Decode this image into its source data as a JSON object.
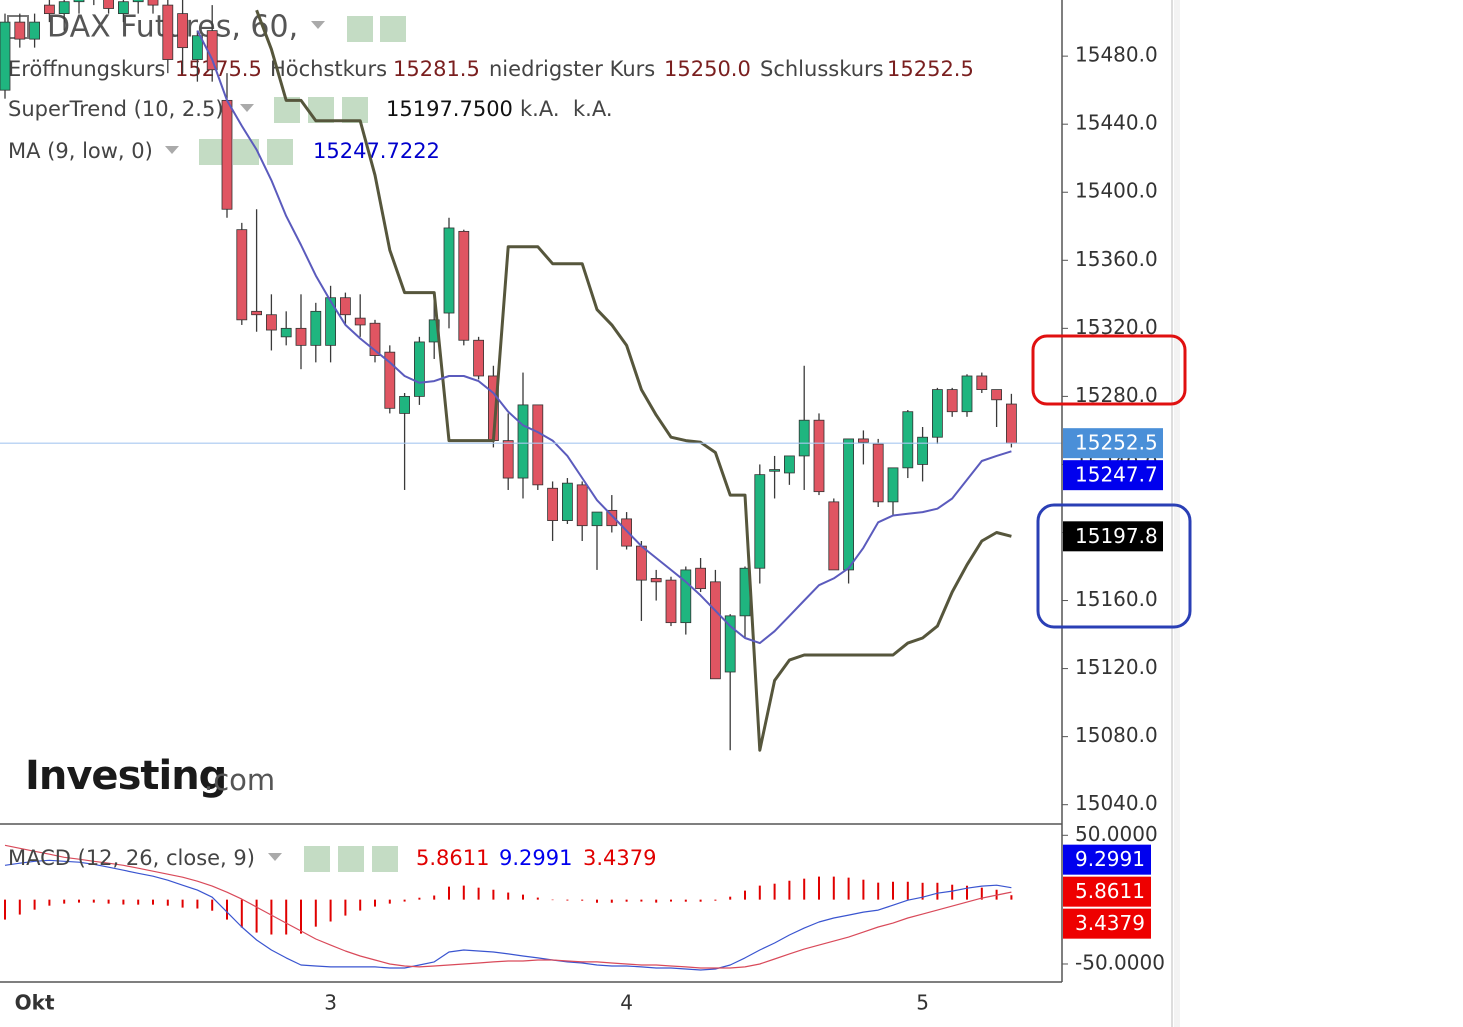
{
  "chart_data": [
    {
      "type": "candlestick",
      "title": "DAX Futures, 60,",
      "categories": [
        null,
        null,
        "Okt",
        null,
        null,
        null,
        null,
        null,
        null,
        null,
        null,
        null,
        null,
        null,
        null,
        null,
        null,
        null,
        null,
        null,
        null,
        null,
        "3",
        null,
        null,
        null,
        null,
        null,
        null,
        null,
        null,
        null,
        null,
        null,
        null,
        null,
        null,
        null,
        null,
        null,
        null,
        null,
        "4",
        null,
        null,
        null,
        null,
        null,
        null,
        null,
        null,
        null,
        null,
        null,
        null,
        null,
        null,
        null,
        null,
        null,
        null,
        null,
        "5",
        null,
        null,
        null,
        null,
        null,
        null
      ],
      "open": [
        15460,
        15500,
        15490,
        15510,
        15505,
        15512,
        15520,
        15515,
        15505,
        15512,
        15515,
        15510,
        15505,
        15478,
        15495,
        15454,
        15378,
        15330,
        15328,
        15315,
        15320,
        15310,
        15310,
        15338,
        15326,
        15323,
        15306,
        15270,
        15280,
        15312,
        15329,
        15377,
        15313,
        15292,
        15254,
        15232,
        15275,
        15226,
        15207,
        15228,
        15204,
        15213,
        15208,
        15192,
        15173,
        15172,
        15147,
        15179,
        15171,
        15118,
        15151,
        15179,
        15236,
        15235,
        15245,
        15266,
        15218,
        15178,
        15255,
        15252,
        15218,
        15238,
        15240,
        15256,
        15284,
        15271,
        15292,
        15284,
        15275.5
      ],
      "high": [
        15505,
        15505,
        15505,
        15520,
        15515,
        15525,
        15525,
        15520,
        15515,
        15520,
        15525,
        15515,
        15515,
        15495,
        15510,
        15470,
        15382,
        15390,
        15340,
        15330,
        15340,
        15335,
        15345,
        15341,
        15340,
        15325,
        15310,
        15282,
        15315,
        15340,
        15385,
        15378,
        15315,
        15298,
        15270,
        15294,
        15275,
        15230,
        15232,
        15230,
        15212,
        15222,
        15212,
        15195,
        15178,
        15174,
        15180,
        15185,
        15178,
        15152,
        15180,
        15240,
        15245,
        15245,
        15298,
        15270,
        15220,
        15255,
        15260,
        15255,
        15238,
        15272,
        15262,
        15285,
        15285,
        15293,
        15294,
        15284,
        15281.5
      ],
      "low": [
        15455,
        15485,
        15485,
        15500,
        15495,
        15505,
        15510,
        15505,
        15500,
        15505,
        15505,
        15470,
        15470,
        15465,
        15465,
        15385,
        15322,
        15318,
        15307,
        15310,
        15296,
        15300,
        15300,
        15322,
        15315,
        15300,
        15270,
        15225,
        15275,
        15302,
        15320,
        15310,
        15290,
        15250,
        15225,
        15220,
        15225,
        15195,
        15205,
        15195,
        15178,
        15200,
        15190,
        15148,
        15160,
        15145,
        15140,
        15165,
        15114,
        15072,
        15138,
        15170,
        15220,
        15228,
        15225,
        15222,
        15178,
        15170,
        15240,
        15215,
        15210,
        15232,
        15230,
        15252,
        15268,
        15268,
        15282,
        15262,
        15250
      ],
      "close": [
        15500,
        15490,
        15500,
        15505,
        15512,
        15520,
        15515,
        15508,
        15512,
        15515,
        15510,
        15478,
        15485,
        15492,
        15472,
        15390,
        15325,
        15328,
        15319,
        15320,
        15310,
        15330,
        15338,
        15328,
        15322,
        15304,
        15273,
        15280,
        15312,
        15325,
        15379,
        15313,
        15292,
        15254,
        15232,
        15275,
        15228,
        15207,
        15229,
        15204,
        15212,
        15204,
        15192,
        15172,
        15171,
        15147,
        15178,
        15167,
        15114,
        15151,
        15179,
        15234,
        15237,
        15245,
        15266,
        15224,
        15178,
        15255,
        15253,
        15218,
        15238,
        15271,
        15256,
        15284,
        15271,
        15292,
        15284,
        15278,
        15252.5
      ],
      "up_color": "#1fb57f",
      "down_color": "#e05562",
      "last_tag_color": "#4a8fd8",
      "ohlc_legend": [
        {
          "name": "Eröffnungskurs",
          "value": "15275.5"
        },
        {
          "name": "Höchstkurs",
          "value": "15281.5"
        },
        {
          "name": "niedrigster Kurs",
          "value": "15250.0"
        },
        {
          "name": "Schlusskurs",
          "value": "15252.5"
        }
      ],
      "series": [
        {
          "name": "SuperTrend (10, 2.5)",
          "color": "#56563c",
          "legend_values": [
            "15197.7500",
            "k.A.",
            "k.A."
          ],
          "tag_label": "15197.8",
          "tag_color": "#000000",
          "values": [
            null,
            null,
            null,
            null,
            null,
            null,
            null,
            null,
            null,
            null,
            null,
            null,
            null,
            null,
            null,
            null,
            null,
            15507,
            15484,
            15454,
            15454,
            15442,
            15442,
            15442,
            15442,
            15410,
            15366,
            15341,
            15341,
            15341,
            15254,
            15254,
            15254,
            15254,
            15368,
            15368,
            15368,
            15358,
            15358,
            15358,
            15331,
            15322,
            15310,
            15284,
            15269,
            15256,
            15254,
            15253,
            15247,
            15222,
            15222,
            15072,
            15113,
            15125,
            15128,
            15128,
            15128,
            15128,
            15128,
            15128,
            15128,
            15135,
            15138,
            15145,
            15165,
            15181,
            15195,
            15200,
            15197.75
          ]
        },
        {
          "name": "MA (9, low, 0)",
          "color": "#5b5bbd",
          "tag_label": "15247.7",
          "tag_color": "#0000ee",
          "values": [
            null,
            null,
            null,
            null,
            null,
            null,
            null,
            null,
            null,
            null,
            null,
            null,
            null,
            15495,
            15478,
            15454,
            15439,
            15425,
            15407,
            15386,
            15369,
            15351,
            15336,
            15322,
            15314,
            15307,
            15300,
            15292,
            15288,
            15289,
            15292,
            15292,
            15289,
            15282,
            15271,
            15263,
            15259,
            15254,
            15245,
            15232,
            15219,
            15210,
            15201,
            15192,
            15185,
            15178,
            15171,
            15163,
            15154,
            15145,
            15138,
            15135,
            15142,
            15151,
            15160,
            15169,
            15173,
            15179,
            15191,
            15206,
            15210,
            15211,
            15212,
            15214,
            15220,
            15231,
            15242,
            15245,
            15247.7222
          ]
        }
      ],
      "ylim": [
        15031,
        15513
      ],
      "yticks": [
        {
          "value": 15040,
          "label": "15040.0"
        },
        {
          "value": 15080,
          "label": "15080.0"
        },
        {
          "value": 15120,
          "label": "15120.0"
        },
        {
          "value": 15160,
          "label": "15160.0"
        },
        {
          "value": 15200,
          "label": "15200.0"
        },
        {
          "value": 15240,
          "label": "15240.0"
        },
        {
          "value": 15280,
          "label": "15280.0"
        },
        {
          "value": 15320,
          "label": "15320.0"
        },
        {
          "value": 15360,
          "label": "15360.0"
        },
        {
          "value": 15400,
          "label": "15400.0"
        },
        {
          "value": 15440,
          "label": "15440.0"
        },
        {
          "value": 15480,
          "label": "15480.0"
        }
      ]
    },
    {
      "type": "macd",
      "title": "MACD (12, 26, close, 9)",
      "series": [
        {
          "color": "#3a55d0",
          "tag_color": "#0000ee",
          "values": [
            26.7,
            28.3,
            29.8,
            30.6,
            29.8,
            29.1,
            27.5,
            25.2,
            22.9,
            20.5,
            18.2,
            15.1,
            11.2,
            7.4,
            1.9,
            -9.7,
            -21.3,
            -31.4,
            -39.1,
            -45.3,
            -50.8,
            -51.6,
            -52.3,
            -52.3,
            -52.3,
            -52.3,
            -53.1,
            -53.1,
            -50.8,
            -48.4,
            -40.7,
            -39.1,
            -39.9,
            -40.7,
            -42.2,
            -43.8,
            -45.3,
            -46.9,
            -48.4,
            -49.2,
            -50.8,
            -51.6,
            -51.6,
            -52.3,
            -53.1,
            -53.1,
            -53.9,
            -54.7,
            -53.9,
            -50.8,
            -45.3,
            -39.1,
            -33.7,
            -27.5,
            -22.1,
            -17.4,
            -14.3,
            -12.0,
            -9.7,
            -8.1,
            -4.3,
            -0.4,
            1.9,
            5.0,
            6.6,
            8.9,
            10.5,
            11.2,
            9.2991
          ]
        },
        {
          "color": "#d94a5a",
          "tag_color": "#ee0000",
          "values": [
            42.2,
            39.9,
            37.6,
            35.3,
            32.9,
            31.4,
            29.8,
            28.3,
            26.7,
            24.4,
            22.1,
            19.8,
            17.4,
            14.3,
            10.5,
            5.8,
            0.4,
            -5.8,
            -12.0,
            -18.2,
            -24.4,
            -30.6,
            -35.3,
            -39.9,
            -43.8,
            -46.9,
            -50.0,
            -51.6,
            -52.3,
            -51.6,
            -50.8,
            -50.0,
            -49.2,
            -48.4,
            -47.7,
            -47.7,
            -46.9,
            -46.9,
            -47.7,
            -48.4,
            -48.4,
            -49.2,
            -50.0,
            -50.8,
            -50.8,
            -51.6,
            -52.3,
            -53.1,
            -53.1,
            -53.1,
            -52.3,
            -50.0,
            -46.1,
            -42.2,
            -38.4,
            -35.3,
            -32.2,
            -29.1,
            -25.2,
            -21.3,
            -18.2,
            -14.3,
            -11.2,
            -8.1,
            -5.0,
            -1.9,
            1.2,
            3.5,
            5.8611
          ]
        },
        {
          "color": "#e00000",
          "tag_color": "#ee0000",
          "kind": "bar",
          "values": [
            -15.5,
            -11.6,
            -7.8,
            -4.7,
            -3.1,
            -2.3,
            -2.3,
            -3.1,
            -3.8,
            -3.9,
            -3.9,
            -4.7,
            -6.2,
            -6.9,
            -8.6,
            -15.5,
            -21.7,
            -25.6,
            -27.1,
            -27.1,
            -26.4,
            -21.0,
            -17.0,
            -12.4,
            -8.5,
            -5.4,
            -3.1,
            -1.5,
            1.5,
            3.2,
            10.1,
            10.9,
            9.3,
            7.7,
            5.5,
            3.9,
            1.6,
            0.0,
            -0.7,
            -0.8,
            -2.4,
            -2.4,
            -1.6,
            -1.5,
            -2.3,
            -1.5,
            -1.6,
            -1.6,
            -0.8,
            2.3,
            7.0,
            10.9,
            12.4,
            14.7,
            16.3,
            17.9,
            17.9,
            17.1,
            15.5,
            13.2,
            13.9,
            13.9,
            13.1,
            13.1,
            11.6,
            10.8,
            9.3,
            7.7,
            3.4379
          ]
        }
      ],
      "ylim": [
        -64,
        58
      ],
      "yticks": [
        {
          "value": 50,
          "label": "50.0000"
        },
        {
          "value": -50,
          "label": "-50.0000"
        }
      ]
    }
  ],
  "watermark": {
    "brand": "Investing",
    "suffix": ".com"
  }
}
